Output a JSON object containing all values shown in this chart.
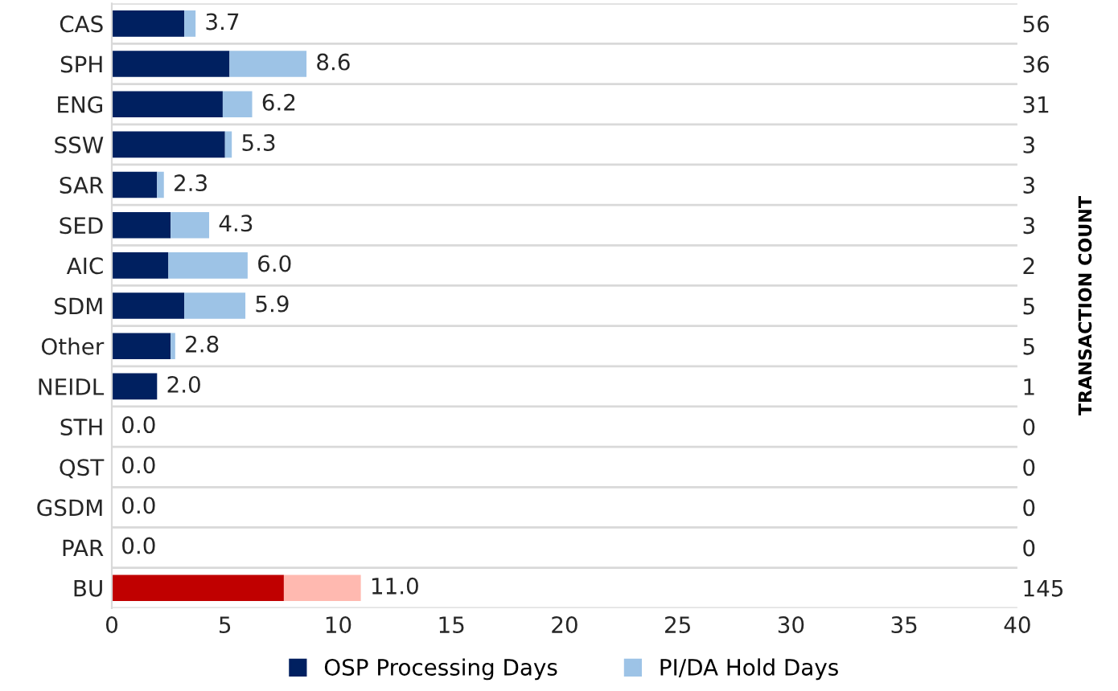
{
  "chart_data": {
    "type": "bar",
    "orientation": "horizontal",
    "stacked": true,
    "categories": [
      "CAS",
      "SPH",
      "ENG",
      "SSW",
      "SAR",
      "SED",
      "AIC",
      "SDM",
      "Other",
      "NEIDL",
      "STH",
      "QST",
      "GSDM",
      "PAR",
      "BU"
    ],
    "series": [
      {
        "name": "OSP Processing Days",
        "color": "#002060",
        "colors": [
          "#002060",
          "#002060",
          "#002060",
          "#002060",
          "#002060",
          "#002060",
          "#002060",
          "#002060",
          "#002060",
          "#002060",
          "#002060",
          "#002060",
          "#002060",
          "#002060",
          "#c00000"
        ],
        "values": [
          3.2,
          5.2,
          4.9,
          5.0,
          2.0,
          2.6,
          2.5,
          3.2,
          2.6,
          2.0,
          0,
          0,
          0,
          0,
          7.6
        ]
      },
      {
        "name": "PI/DA Hold Days",
        "color": "#9dc3e6",
        "colors": [
          "#9dc3e6",
          "#9dc3e6",
          "#9dc3e6",
          "#9dc3e6",
          "#9dc3e6",
          "#9dc3e6",
          "#9dc3e6",
          "#9dc3e6",
          "#9dc3e6",
          "#9dc3e6",
          "#9dc3e6",
          "#9dc3e6",
          "#9dc3e6",
          "#9dc3e6",
          "#ffb9b0"
        ],
        "values": [
          0.5,
          3.4,
          1.3,
          0.3,
          0.3,
          1.7,
          3.5,
          2.7,
          0.2,
          0,
          0,
          0,
          0,
          0,
          3.4
        ]
      }
    ],
    "totals": [
      "3.7",
      "8.6",
      "6.2",
      "5.3",
      "2.3",
      "4.3",
      "6.0",
      "5.9",
      "2.8",
      "2.0",
      "0.0",
      "0.0",
      "0.0",
      "0.0",
      "11.0"
    ],
    "y2label": "TRANSACTION COUNT",
    "y2_categories": [
      "56",
      "36",
      "31",
      "3",
      "3",
      "3",
      "2",
      "5",
      "5",
      "1",
      "0",
      "0",
      "0",
      "0",
      "145"
    ],
    "xlim": [
      0,
      40
    ],
    "xticks": [
      0,
      5,
      10,
      15,
      20,
      25,
      30,
      35,
      40
    ],
    "grid": "y",
    "legend": "bottom"
  }
}
